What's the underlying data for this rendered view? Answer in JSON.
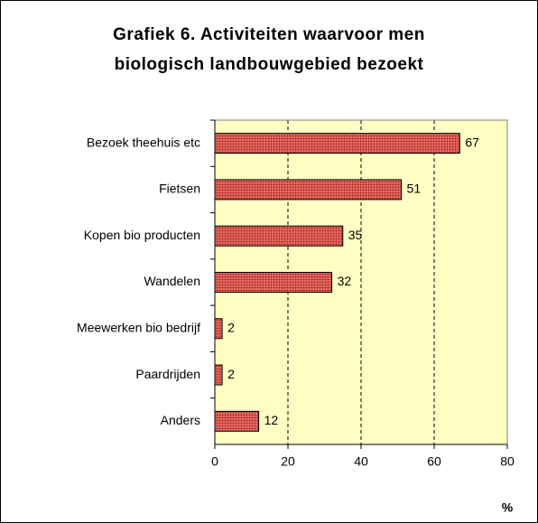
{
  "chart_data": {
    "type": "bar",
    "orientation": "horizontal",
    "title": "Grafiek 6. Activiteiten waarvoor men biologisch landbouwgebied bezoekt",
    "categories": [
      "Bezoek theehuis etc",
      "Fietsen",
      "Kopen bio producten",
      "Wandelen",
      "Meewerken bio bedrijf",
      "Paardrijden",
      "Anders"
    ],
    "values": [
      67,
      51,
      35,
      32,
      2,
      2,
      12
    ],
    "color": "#c8403a",
    "xlim": [
      0,
      80
    ],
    "xticks": [
      0,
      20,
      40,
      60,
      80
    ],
    "x_label": "%",
    "grid": true
  }
}
